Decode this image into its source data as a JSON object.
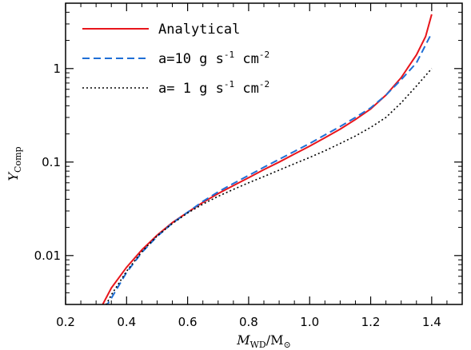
{
  "chart_data": {
    "type": "line",
    "xlabel": {
      "main": "M",
      "sub": "WD",
      "rest": "/M",
      "rest_sub": "⊙"
    },
    "ylabel": {
      "main": "Y",
      "sub": "Comp"
    },
    "xlim": [
      0.2,
      1.5
    ],
    "ylim": [
      0.003,
      5.0
    ],
    "yscale": "log",
    "x_ticks": [
      0.2,
      0.4,
      0.6,
      0.8,
      1.0,
      1.2,
      1.4
    ],
    "x_tick_labels": [
      "0.2",
      "0.4",
      "0.6",
      "0.8",
      "1.0",
      "1.2",
      "1.4"
    ],
    "y_ticks": [
      0.01,
      0.1,
      1
    ],
    "y_tick_labels": [
      "0.01",
      "0.1",
      "1"
    ],
    "legend_position": "top-left",
    "series": [
      {
        "name": "Analytical",
        "legend": {
          "prefix": "Analytical",
          "sup1": "",
          "mid": "",
          "sup2": ""
        },
        "color": "#e8151b",
        "style": "solid",
        "points": [
          [
            0.3,
            0.0022
          ],
          [
            0.35,
            0.0045
          ],
          [
            0.4,
            0.0075
          ],
          [
            0.45,
            0.0115
          ],
          [
            0.5,
            0.0165
          ],
          [
            0.55,
            0.0225
          ],
          [
            0.6,
            0.029
          ],
          [
            0.65,
            0.037
          ],
          [
            0.7,
            0.046
          ],
          [
            0.75,
            0.056
          ],
          [
            0.8,
            0.068
          ],
          [
            0.85,
            0.083
          ],
          [
            0.9,
            0.1
          ],
          [
            0.95,
            0.122
          ],
          [
            1.0,
            0.148
          ],
          [
            1.05,
            0.182
          ],
          [
            1.1,
            0.225
          ],
          [
            1.15,
            0.285
          ],
          [
            1.2,
            0.37
          ],
          [
            1.25,
            0.52
          ],
          [
            1.3,
            0.8
          ],
          [
            1.35,
            1.4
          ],
          [
            1.38,
            2.2
          ],
          [
            1.4,
            3.8
          ]
        ]
      },
      {
        "name": "a=10 g s-1 cm-2",
        "legend": {
          "prefix": "a=10 g s",
          "sup1": "-1",
          "mid": " cm",
          "sup2": "-2"
        },
        "color": "#1f6fd6",
        "style": "dashed",
        "points": [
          [
            0.31,
            0.0022
          ],
          [
            0.35,
            0.0035
          ],
          [
            0.4,
            0.0066
          ],
          [
            0.45,
            0.0108
          ],
          [
            0.5,
            0.016
          ],
          [
            0.55,
            0.0222
          ],
          [
            0.6,
            0.029
          ],
          [
            0.65,
            0.038
          ],
          [
            0.7,
            0.048
          ],
          [
            0.75,
            0.059
          ],
          [
            0.8,
            0.072
          ],
          [
            0.85,
            0.088
          ],
          [
            0.9,
            0.107
          ],
          [
            0.95,
            0.13
          ],
          [
            1.0,
            0.158
          ],
          [
            1.05,
            0.195
          ],
          [
            1.1,
            0.24
          ],
          [
            1.15,
            0.3
          ],
          [
            1.2,
            0.38
          ],
          [
            1.25,
            0.52
          ],
          [
            1.3,
            0.76
          ],
          [
            1.35,
            1.15
          ],
          [
            1.4,
            2.4
          ]
        ]
      },
      {
        "name": "a=1 g s-1 cm-2",
        "legend": {
          "prefix": "a= 1 g s",
          "sup1": "-1",
          "mid": " cm",
          "sup2": "-2"
        },
        "color": "#000000",
        "style": "dotted",
        "points": [
          [
            0.32,
            0.0025
          ],
          [
            0.35,
            0.0038
          ],
          [
            0.4,
            0.0068
          ],
          [
            0.45,
            0.011
          ],
          [
            0.5,
            0.0162
          ],
          [
            0.55,
            0.022
          ],
          [
            0.6,
            0.0285
          ],
          [
            0.65,
            0.0355
          ],
          [
            0.7,
            0.043
          ],
          [
            0.75,
            0.051
          ],
          [
            0.8,
            0.06
          ],
          [
            0.85,
            0.07
          ],
          [
            0.9,
            0.082
          ],
          [
            0.95,
            0.096
          ],
          [
            1.0,
            0.112
          ],
          [
            1.05,
            0.132
          ],
          [
            1.1,
            0.158
          ],
          [
            1.15,
            0.19
          ],
          [
            1.2,
            0.235
          ],
          [
            1.25,
            0.3
          ],
          [
            1.3,
            0.43
          ],
          [
            1.35,
            0.65
          ],
          [
            1.4,
            1.0
          ]
        ]
      }
    ]
  }
}
